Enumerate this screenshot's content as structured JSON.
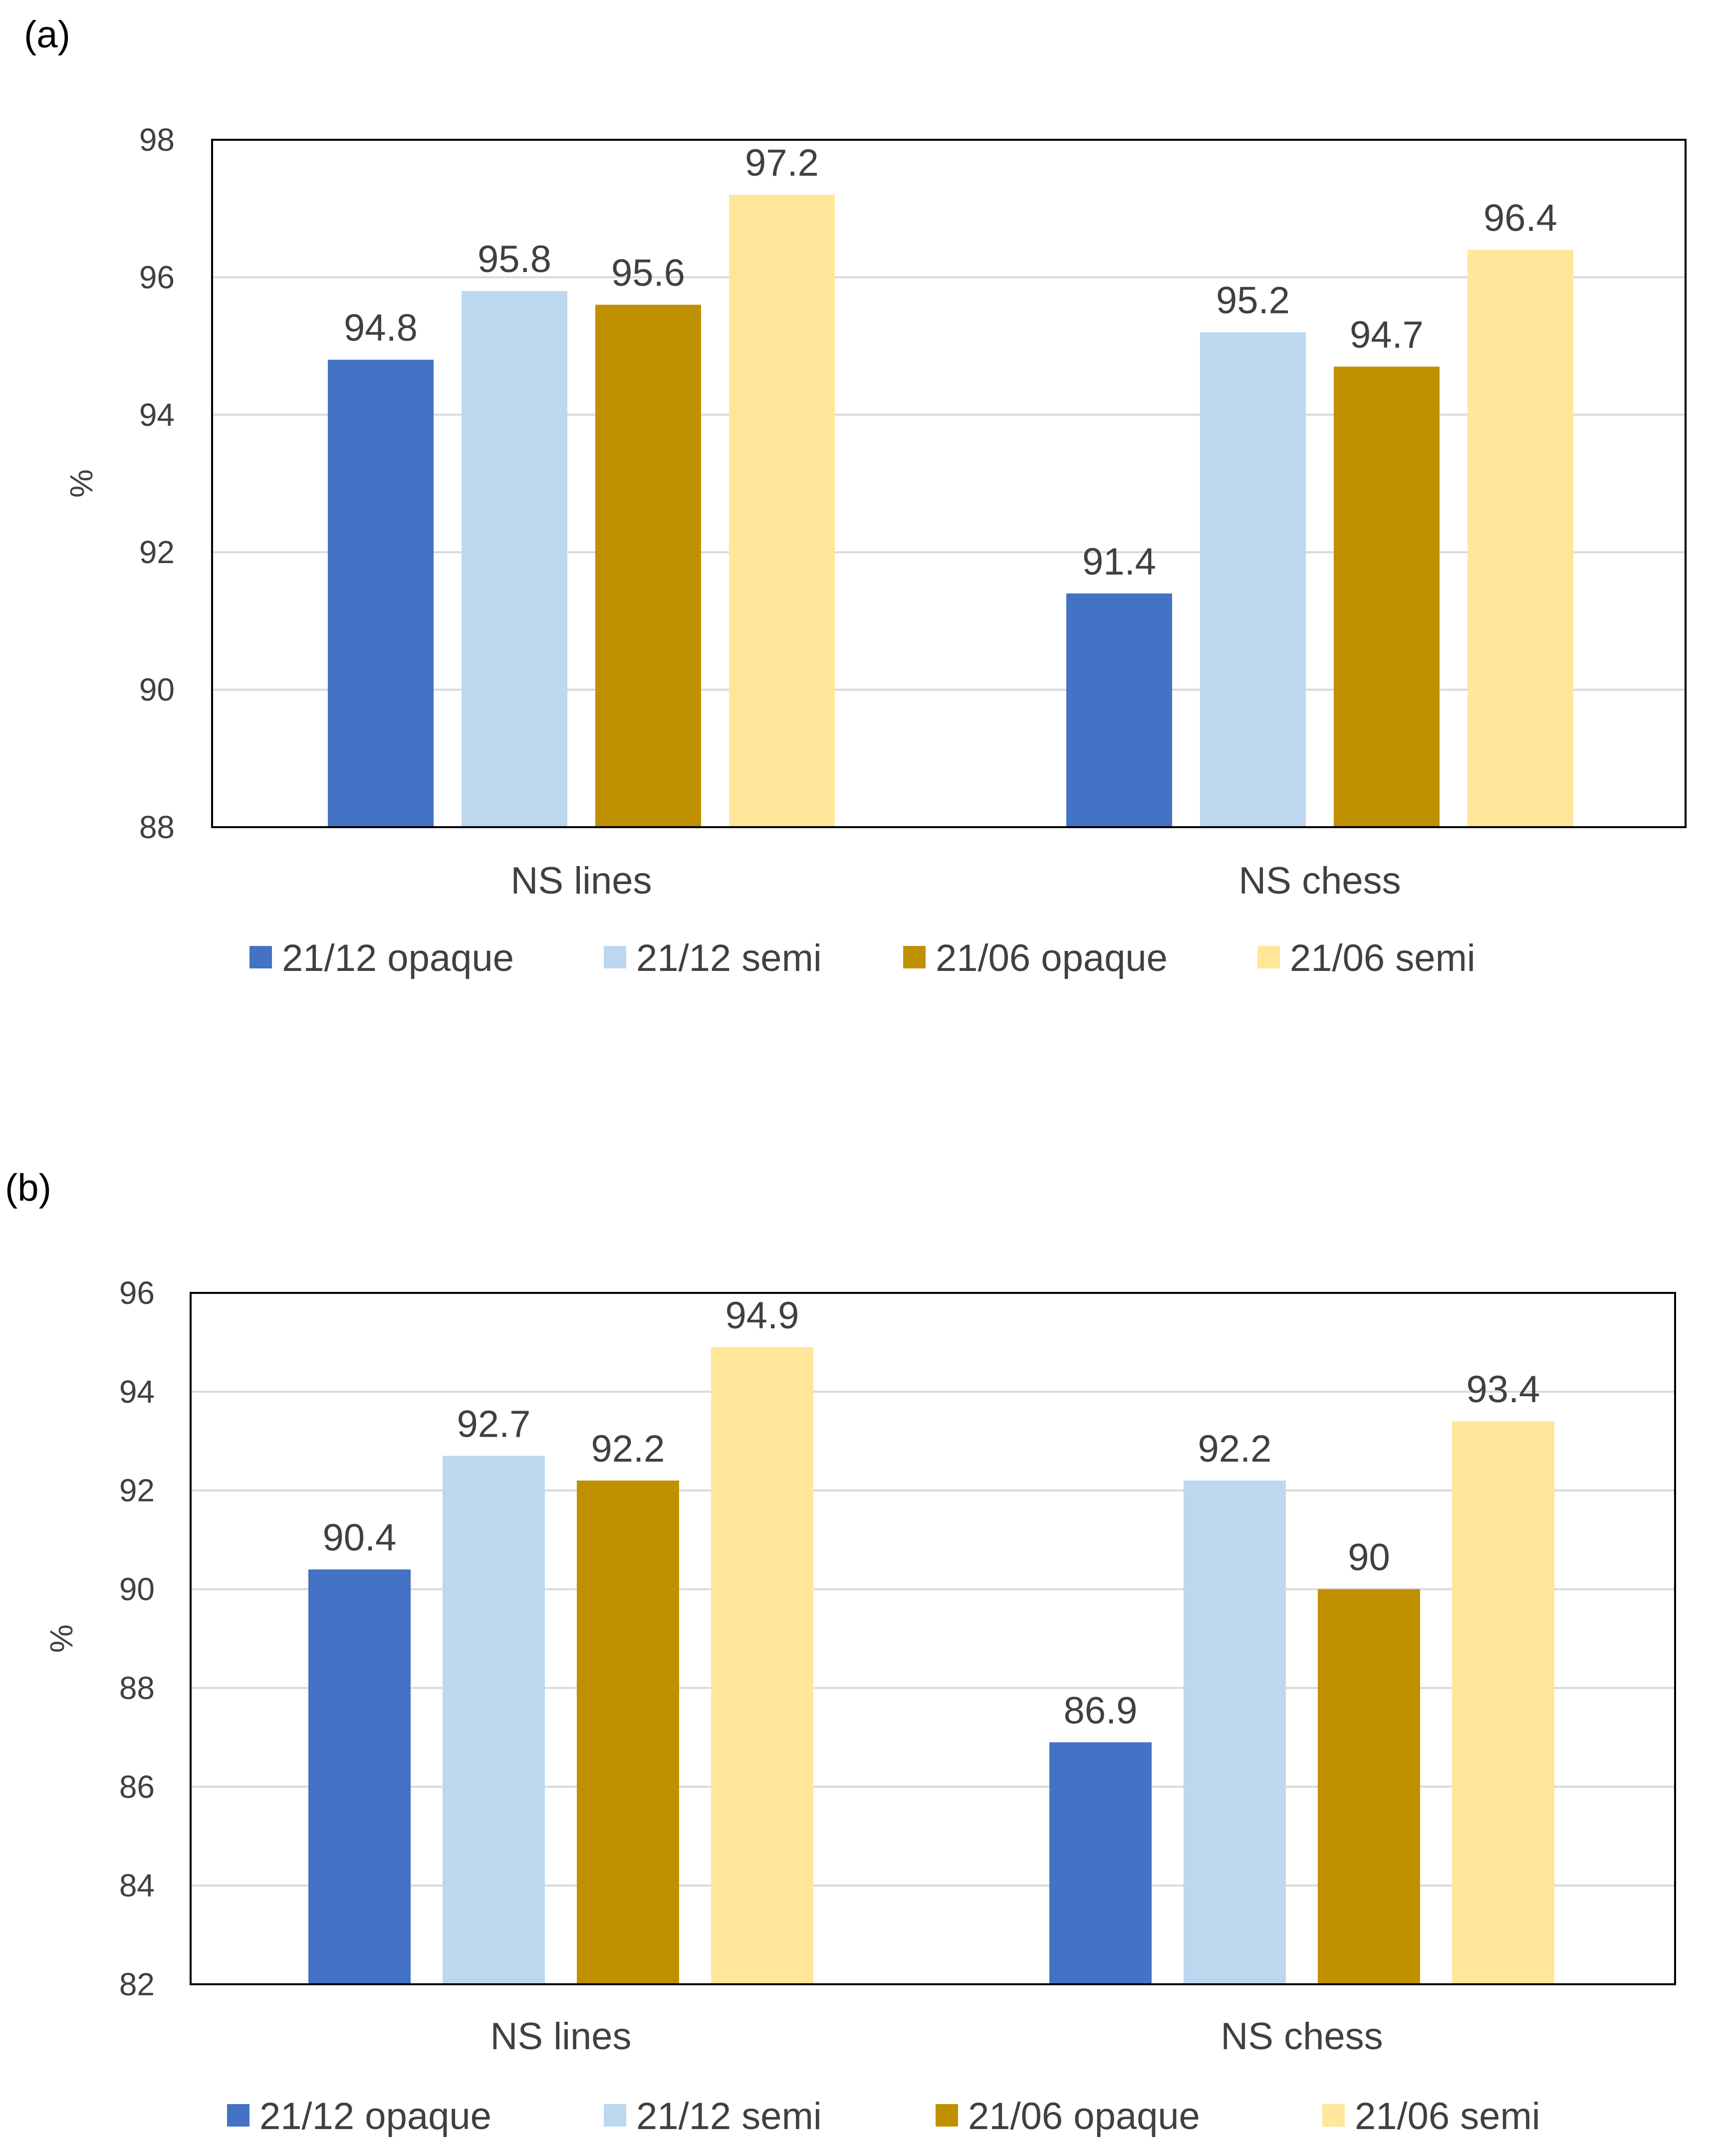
{
  "chart_data": [
    {
      "type": "bar",
      "panel_label": "(a)",
      "categories": [
        "NS lines",
        "NS chess"
      ],
      "series": [
        {
          "name": "21/12 opaque",
          "color": "#4472C4",
          "values": [
            94.8,
            91.4
          ]
        },
        {
          "name": "21/12 semi",
          "color": "#BDD7EE",
          "values": [
            95.8,
            95.2
          ]
        },
        {
          "name": "21/06 opaque",
          "color": "#BF9000",
          "values": [
            95.6,
            94.7
          ]
        },
        {
          "name": "21/06 semi",
          "color": "#FFE699",
          "values": [
            97.2,
            96.4
          ]
        }
      ],
      "ylabel": "%",
      "ylim": [
        88,
        98
      ],
      "yticks": [
        88,
        90,
        92,
        94,
        96,
        98
      ],
      "grid": true,
      "legend": "bottom"
    },
    {
      "type": "bar",
      "panel_label": "(b)",
      "categories": [
        "NS lines",
        "NS chess"
      ],
      "series": [
        {
          "name": "21/12 opaque",
          "color": "#4472C4",
          "values": [
            90.4,
            86.9
          ]
        },
        {
          "name": "21/12 semi",
          "color": "#BDD7EE",
          "values": [
            92.7,
            92.2
          ]
        },
        {
          "name": "21/06 opaque",
          "color": "#BF9000",
          "values": [
            92.2,
            90
          ]
        },
        {
          "name": "21/06 semi",
          "color": "#FFE699",
          "values": [
            94.9,
            93.4
          ]
        }
      ],
      "ylabel": "%",
      "ylim": [
        82,
        96
      ],
      "yticks": [
        82,
        84,
        86,
        88,
        90,
        92,
        94,
        96
      ],
      "grid": true,
      "legend": "bottom"
    }
  ]
}
